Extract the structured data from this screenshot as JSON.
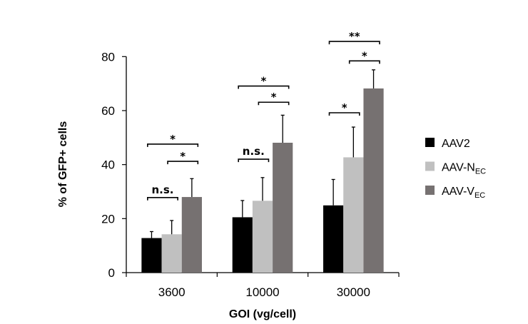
{
  "chart_data": {
    "type": "bar",
    "title": "",
    "xlabel": "GOI (vg/cell)",
    "ylabel": "% of GFP+ cells",
    "ylim": [
      0,
      80
    ],
    "yticks": [
      0,
      20,
      40,
      60,
      80
    ],
    "grid": false,
    "legend_position": "right",
    "categories": [
      "3600",
      "10000",
      "30000"
    ],
    "series": [
      {
        "name": "AAV2",
        "name_main": "AAV2",
        "name_sub": "",
        "color": "#000000",
        "values": [
          12.8,
          20.5,
          24.9
        ],
        "errors": [
          2.4,
          6.2,
          9.6
        ]
      },
      {
        "name": "AAV-NEC",
        "name_main": "AAV-N",
        "name_sub": "EC",
        "color": "#c0c0c0",
        "values": [
          14.2,
          26.6,
          42.7
        ],
        "errors": [
          5.1,
          8.6,
          11.2
        ]
      },
      {
        "name": "AAV-VEC",
        "name_main": "AAV-V",
        "name_sub": "EC",
        "color": "#767171",
        "values": [
          28.0,
          48.1,
          68.2
        ],
        "errors": [
          6.8,
          10.2,
          6.9
        ]
      }
    ],
    "annotations": [
      {
        "category": 0,
        "from": 0,
        "to": 1,
        "level": 27.8,
        "label": "n.s."
      },
      {
        "category": 0,
        "from": 0,
        "to": 2,
        "level": 47.6,
        "label": "*"
      },
      {
        "category": 0,
        "from": 1,
        "to": 2,
        "level": 41.2,
        "label": "*"
      },
      {
        "category": 1,
        "from": 0,
        "to": 1,
        "level": 42.0,
        "label": "n.s."
      },
      {
        "category": 1,
        "from": 0,
        "to": 2,
        "level": 69.1,
        "label": "*"
      },
      {
        "category": 1,
        "from": 1,
        "to": 2,
        "level": 63.1,
        "label": "*"
      },
      {
        "category": 2,
        "from": 0,
        "to": 1,
        "level": 59.2,
        "label": "*"
      },
      {
        "category": 2,
        "from": 0,
        "to": 2,
        "level": 85.6,
        "label": "**"
      },
      {
        "category": 2,
        "from": 1,
        "to": 2,
        "level": 78.4,
        "label": "*"
      }
    ]
  }
}
